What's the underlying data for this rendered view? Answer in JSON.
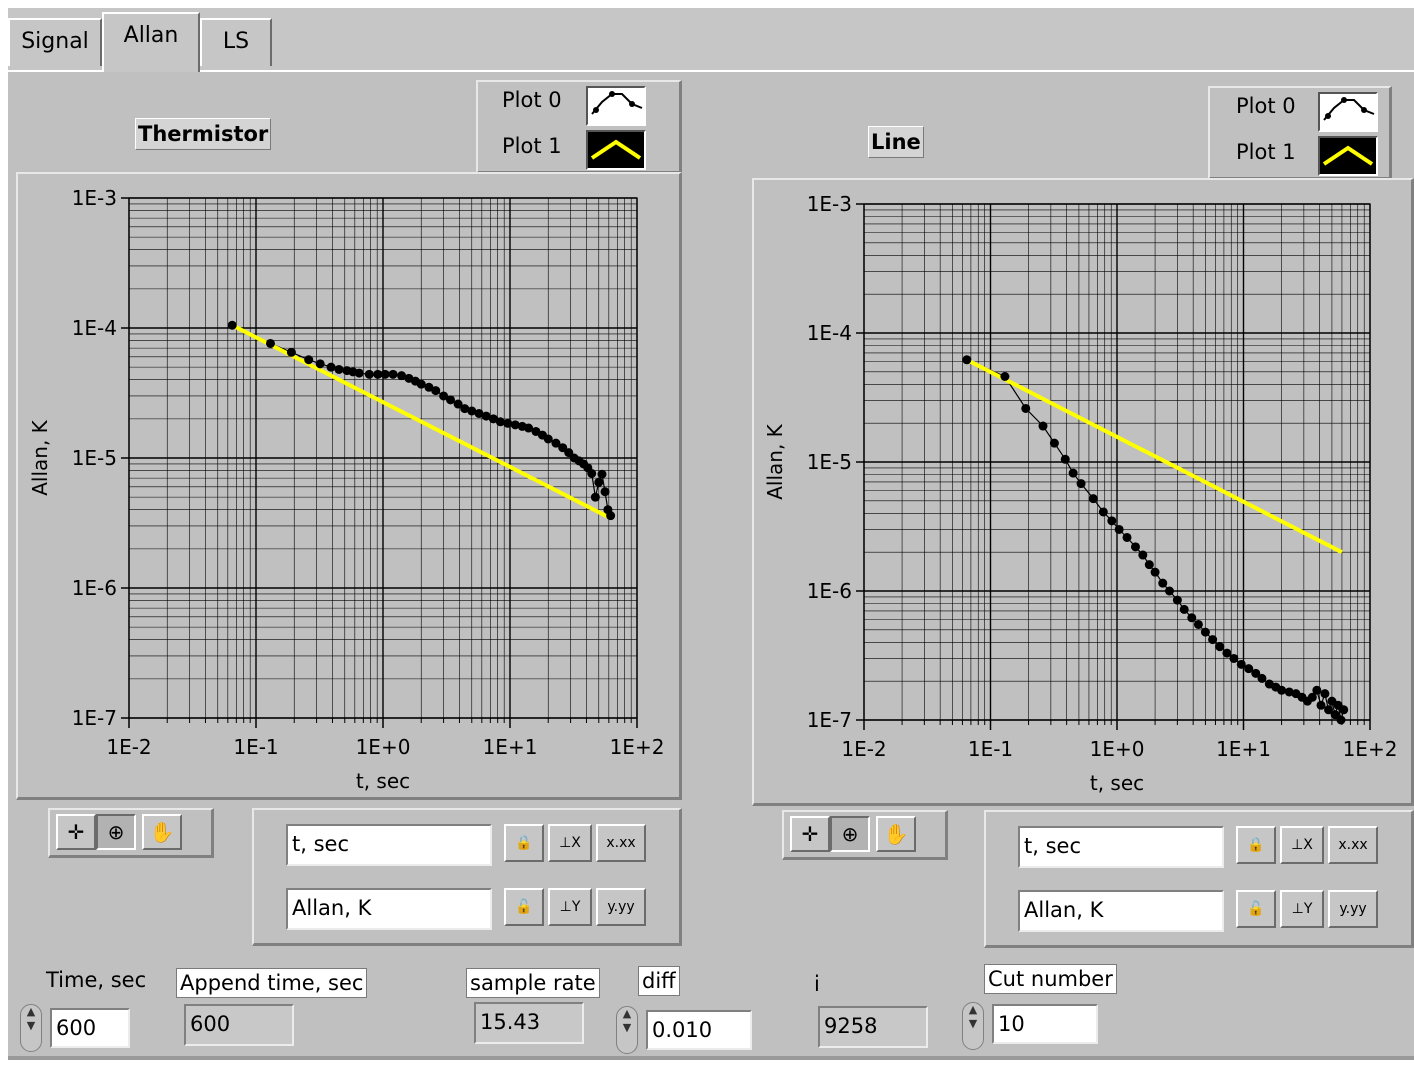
{
  "tabs": [
    "Signal",
    "Allan",
    "LS"
  ],
  "active_tab": "Allan",
  "graphs": [
    {
      "title": "Thermistor",
      "legend": [
        {
          "label": "Plot 0",
          "color": "#000000"
        },
        {
          "label": "Plot 1",
          "color": "#ffff00"
        }
      ],
      "x_ticks": [
        "1E-2",
        "1E-1",
        "1E+0",
        "1E+1",
        "1E+2"
      ],
      "y_ticks": [
        "1E-3",
        "1E-4",
        "1E-5",
        "1E-6",
        "1E-7"
      ],
      "xlabel": "t, sec",
      "ylabel": "Allan, K",
      "x_scale_name": "t, sec",
      "y_scale_name": "Allan, K",
      "x_fmt": "x.xx",
      "y_fmt": "y.yy"
    },
    {
      "title": "Line",
      "legend": [
        {
          "label": "Plot 0",
          "color": "#000000"
        },
        {
          "label": "Plot 1",
          "color": "#ffff00"
        }
      ],
      "x_ticks": [
        "1E-2",
        "1E-1",
        "1E+0",
        "1E+1",
        "1E+2"
      ],
      "y_ticks": [
        "1E-3",
        "1E-4",
        "1E-5",
        "1E-6",
        "1E-7"
      ],
      "xlabel": "t, sec",
      "ylabel": "Allan, K",
      "x_scale_name": "t, sec",
      "y_scale_name": "Allan, K",
      "x_fmt": "x.xx",
      "y_fmt": "y.yy"
    }
  ],
  "chart_data": [
    {
      "type": "scatter",
      "title": "Thermistor",
      "xlabel": "t, sec",
      "ylabel": "Allan, K",
      "log_x": true,
      "log_y": true,
      "xlim": [
        0.01,
        100
      ],
      "ylim": [
        1e-07,
        0.001
      ],
      "grid": true,
      "legend_placement": "top-right",
      "series": [
        {
          "name": "Plot 0",
          "color": "#000000",
          "x": [
            0.065,
            0.13,
            0.19,
            0.26,
            0.32,
            0.39,
            0.45,
            0.52,
            0.58,
            0.65,
            0.78,
            0.91,
            1.04,
            1.2,
            1.4,
            1.6,
            1.8,
            2.0,
            2.3,
            2.6,
            3.0,
            3.4,
            3.9,
            4.4,
            5.0,
            5.7,
            6.5,
            7.4,
            8.4,
            9.6,
            11,
            12.5,
            14,
            16,
            18,
            20,
            23,
            26,
            29,
            32,
            35,
            38,
            41,
            44,
            47,
            50,
            53,
            56,
            59,
            62
          ],
          "y": [
            0.000105,
            7.6e-05,
            6.5e-05,
            5.7e-05,
            5.3e-05,
            5e-05,
            4.8e-05,
            4.7e-05,
            4.6e-05,
            4.5e-05,
            4.4e-05,
            4.4e-05,
            4.4e-05,
            4.4e-05,
            4.3e-05,
            4.1e-05,
            3.9e-05,
            3.7e-05,
            3.5e-05,
            3.3e-05,
            3e-05,
            2.8e-05,
            2.6e-05,
            2.4e-05,
            2.3e-05,
            2.2e-05,
            2.1e-05,
            2e-05,
            1.9e-05,
            1.85e-05,
            1.8e-05,
            1.75e-05,
            1.7e-05,
            1.6e-05,
            1.5e-05,
            1.4e-05,
            1.3e-05,
            1.2e-05,
            1.1e-05,
            1e-05,
            9.5e-06,
            9e-06,
            8.4e-06,
            7.6e-06,
            5e-06,
            6.5e-06,
            7.5e-06,
            5.5e-06,
            4e-06,
            3.6e-06
          ]
        },
        {
          "name": "Plot 1",
          "color": "#ffff00",
          "x": [
            0.065,
            60
          ],
          "y": [
            0.000105,
            3.5e-06
          ]
        }
      ]
    },
    {
      "type": "scatter",
      "title": "Line",
      "xlabel": "t, sec",
      "ylabel": "Allan, K",
      "log_x": true,
      "log_y": true,
      "xlim": [
        0.01,
        100
      ],
      "ylim": [
        1e-07,
        0.001
      ],
      "grid": true,
      "legend_placement": "top-right",
      "series": [
        {
          "name": "Plot 0",
          "color": "#000000",
          "x": [
            0.065,
            0.13,
            0.19,
            0.26,
            0.32,
            0.39,
            0.45,
            0.52,
            0.65,
            0.78,
            0.91,
            1.04,
            1.2,
            1.4,
            1.6,
            1.8,
            2.0,
            2.3,
            2.6,
            3.0,
            3.4,
            3.9,
            4.4,
            5.0,
            5.7,
            6.5,
            7.4,
            8.4,
            9.6,
            11,
            12.5,
            14,
            16,
            18,
            20,
            23,
            26,
            29,
            32,
            35,
            38,
            41,
            44,
            47,
            50,
            53,
            56,
            59,
            62
          ],
          "y": [
            6.2e-05,
            4.6e-05,
            2.6e-05,
            1.9e-05,
            1.4e-05,
            1.05e-05,
            8.2e-06,
            6.8e-06,
            5.2e-06,
            4.1e-06,
            3.5e-06,
            3e-06,
            2.6e-06,
            2.2e-06,
            1.9e-06,
            1.6e-06,
            1.4e-06,
            1.15e-06,
            1e-06,
            8.5e-07,
            7.2e-07,
            6.2e-07,
            5.5e-07,
            4.8e-07,
            4.2e-07,
            3.7e-07,
            3.3e-07,
            3e-07,
            2.7e-07,
            2.5e-07,
            2.3e-07,
            2.1e-07,
            1.9e-07,
            1.8e-07,
            1.7e-07,
            1.65e-07,
            1.6e-07,
            1.5e-07,
            1.4e-07,
            1.5e-07,
            1.7e-07,
            1.3e-07,
            1.6e-07,
            1.2e-07,
            1.4e-07,
            1.1e-07,
            1.3e-07,
            1e-07,
            1.2e-07
          ]
        },
        {
          "name": "Plot 1",
          "color": "#ffff00",
          "x": [
            0.065,
            60
          ],
          "y": [
            6.2e-05,
            2e-06
          ]
        }
      ]
    }
  ],
  "controls": {
    "time_label": "Time,  sec",
    "time_value": "600",
    "append_label": "Append time, sec",
    "append_value": "600",
    "sample_rate_label": "sample rate",
    "sample_rate_value": "15.43",
    "diff_label": "diff",
    "diff_value": "0.010",
    "i_label": "i",
    "i_value": "9258",
    "cut_label": "Cut number",
    "cut_value": "10"
  }
}
